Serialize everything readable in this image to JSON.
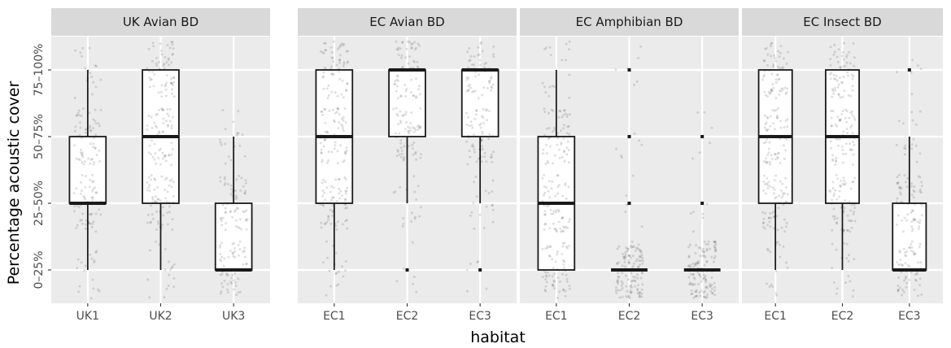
{
  "chart_data": {
    "type": "boxplot",
    "xlabel": "habitat",
    "ylabel": "Percentage acoustic cover",
    "y_categories": [
      "0-25%",
      "25-50%",
      "50-75%",
      "75-100%"
    ],
    "y_tick_labels": [
      "0–25%",
      "25–50%",
      "50–75%",
      "75–100%"
    ],
    "y_scale": {
      "levels": [
        1,
        2,
        3,
        4
      ],
      "range": [
        0.5,
        4.5
      ]
    },
    "jitter_points": true,
    "panels": [
      {
        "title": "UK Avian BD",
        "groups": [
          {
            "label": "UK1",
            "lower": 1,
            "q1": 2,
            "median": 2,
            "q3": 3,
            "upper": 4,
            "outliers": []
          },
          {
            "label": "UK2",
            "lower": 1,
            "q1": 2,
            "median": 3,
            "q3": 4,
            "upper": 4,
            "outliers": []
          },
          {
            "label": "UK3",
            "lower": 1,
            "q1": 1,
            "median": 1,
            "q3": 2,
            "upper": 3,
            "outliers": []
          }
        ]
      },
      {
        "title": "EC Avian BD",
        "groups": [
          {
            "label": "EC1",
            "lower": 1,
            "q1": 2,
            "median": 3,
            "q3": 4,
            "upper": 4,
            "outliers": []
          },
          {
            "label": "EC2",
            "lower": 2,
            "q1": 3,
            "median": 4,
            "q3": 4,
            "upper": 4,
            "outliers": [
              1
            ]
          },
          {
            "label": "EC3",
            "lower": 2,
            "q1": 3,
            "median": 4,
            "q3": 4,
            "upper": 4,
            "outliers": [
              1
            ]
          }
        ]
      },
      {
        "title": "EC Amphibian BD",
        "groups": [
          {
            "label": "EC1",
            "lower": 1,
            "q1": 1,
            "median": 2,
            "q3": 3,
            "upper": 4,
            "outliers": []
          },
          {
            "label": "EC2",
            "lower": 1,
            "q1": 1,
            "median": 1,
            "q3": 1,
            "upper": 1,
            "outliers": [
              2,
              3,
              4
            ]
          },
          {
            "label": "EC3",
            "lower": 1,
            "q1": 1,
            "median": 1,
            "q3": 1,
            "upper": 1,
            "outliers": [
              2,
              3
            ]
          }
        ]
      },
      {
        "title": "EC Insect BD",
        "groups": [
          {
            "label": "EC1",
            "lower": 1,
            "q1": 2,
            "median": 3,
            "q3": 4,
            "upper": 4,
            "outliers": []
          },
          {
            "label": "EC2",
            "lower": 1,
            "q1": 2,
            "median": 3,
            "q3": 4,
            "upper": 4,
            "outliers": []
          },
          {
            "label": "EC3",
            "lower": 1,
            "q1": 1,
            "median": 1,
            "q3": 2,
            "upper": 3,
            "outliers": [
              4
            ]
          }
        ]
      }
    ]
  }
}
